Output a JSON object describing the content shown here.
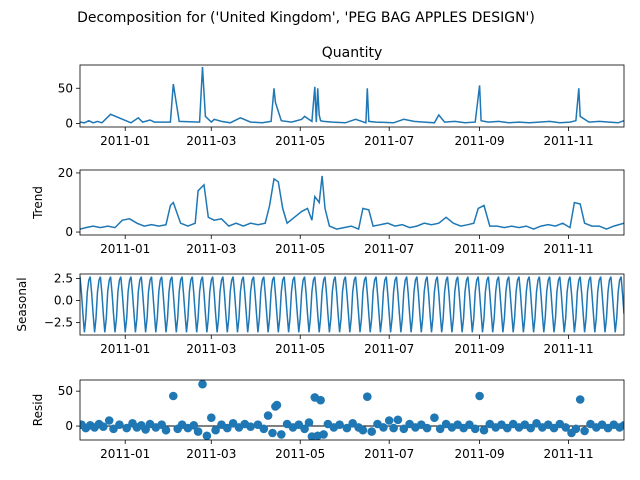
{
  "suptitle": "Decomposition for ('United Kingdom', 'PEG BAG APPLES DESIGN')",
  "colors": {
    "line": "#1f77b4",
    "axis": "#000000",
    "zero": "#000000"
  },
  "chart_data": [
    {
      "type": "line",
      "title": "Quantity",
      "ylabel": "",
      "ylim": [
        -5,
        83
      ],
      "xlim": [
        "2010-12-01",
        "2011-12-09"
      ],
      "yticks": [
        {
          "value": 0,
          "label": "0"
        },
        {
          "value": 50,
          "label": "50"
        }
      ],
      "xticks": [
        {
          "date": "2011-01-01",
          "label": "2011-01"
        },
        {
          "date": "2011-03-01",
          "label": "2011-03"
        },
        {
          "date": "2011-05-01",
          "label": "2011-05"
        },
        {
          "date": "2011-07-01",
          "label": "2011-07"
        },
        {
          "date": "2011-09-01",
          "label": "2011-09"
        },
        {
          "date": "2011-11-01",
          "label": "2011-11"
        }
      ],
      "x_dates": [
        "2010-12-01",
        "2010-12-04",
        "2010-12-07",
        "2010-12-10",
        "2010-12-13",
        "2010-12-16",
        "2010-12-22",
        "2011-01-05",
        "2011-01-10",
        "2011-01-13",
        "2011-01-18",
        "2011-01-21",
        "2011-02-01",
        "2011-02-03",
        "2011-02-07",
        "2011-02-21",
        "2011-02-23",
        "2011-02-25",
        "2011-03-01",
        "2011-03-03",
        "2011-03-08",
        "2011-03-14",
        "2011-03-21",
        "2011-03-28",
        "2011-04-05",
        "2011-04-11",
        "2011-04-13",
        "2011-04-14",
        "2011-04-18",
        "2011-04-25",
        "2011-05-02",
        "2011-05-04",
        "2011-05-09",
        "2011-05-11",
        "2011-05-12",
        "2011-05-13",
        "2011-05-14",
        "2011-05-15",
        "2011-05-17",
        "2011-05-23",
        "2011-06-01",
        "2011-06-08",
        "2011-06-15",
        "2011-06-16",
        "2011-06-17",
        "2011-06-22",
        "2011-07-04",
        "2011-07-11",
        "2011-07-18",
        "2011-07-25",
        "2011-08-01",
        "2011-08-04",
        "2011-08-08",
        "2011-08-15",
        "2011-08-22",
        "2011-08-29",
        "2011-09-01",
        "2011-09-02",
        "2011-09-07",
        "2011-09-14",
        "2011-09-21",
        "2011-09-28",
        "2011-10-05",
        "2011-10-12",
        "2011-10-19",
        "2011-10-26",
        "2011-11-02",
        "2011-11-06",
        "2011-11-08",
        "2011-11-09",
        "2011-11-15",
        "2011-11-22",
        "2011-11-29",
        "2011-12-05",
        "2011-12-09"
      ],
      "values": [
        2,
        1,
        4,
        1,
        3,
        1,
        13,
        1,
        8,
        2,
        5,
        2,
        2,
        56,
        3,
        2,
        80,
        10,
        2,
        6,
        3,
        1,
        8,
        2,
        1,
        3,
        50,
        30,
        4,
        2,
        6,
        10,
        3,
        52,
        2,
        50,
        12,
        4,
        3,
        2,
        1,
        6,
        1,
        50,
        3,
        2,
        1,
        6,
        3,
        2,
        1,
        12,
        2,
        3,
        1,
        2,
        54,
        4,
        2,
        3,
        1,
        2,
        1,
        2,
        3,
        1,
        2,
        4,
        50,
        10,
        2,
        3,
        2,
        1,
        4
      ]
    },
    {
      "type": "line",
      "title": "",
      "ylabel": "Trend",
      "ylim": [
        -1,
        21
      ],
      "xlim": [
        "2010-12-01",
        "2011-12-09"
      ],
      "yticks": [
        {
          "value": 0,
          "label": "0"
        },
        {
          "value": 20,
          "label": "20"
        }
      ],
      "xticks": [
        {
          "date": "2011-01-01",
          "label": "2011-01"
        },
        {
          "date": "2011-03-01",
          "label": "2011-03"
        },
        {
          "date": "2011-05-01",
          "label": "2011-05"
        },
        {
          "date": "2011-07-01",
          "label": "2011-07"
        },
        {
          "date": "2011-09-01",
          "label": "2011-09"
        },
        {
          "date": "2011-11-01",
          "label": "2011-11"
        }
      ],
      "x_dates": [
        "2010-12-01",
        "2010-12-05",
        "2010-12-10",
        "2010-12-15",
        "2010-12-20",
        "2010-12-25",
        "2010-12-30",
        "2011-01-04",
        "2011-01-09",
        "2011-01-14",
        "2011-01-19",
        "2011-01-24",
        "2011-01-29",
        "2011-02-01",
        "2011-02-03",
        "2011-02-08",
        "2011-02-13",
        "2011-02-18",
        "2011-02-20",
        "2011-02-24",
        "2011-02-27",
        "2011-03-03",
        "2011-03-08",
        "2011-03-13",
        "2011-03-18",
        "2011-03-23",
        "2011-03-28",
        "2011-04-02",
        "2011-04-07",
        "2011-04-10",
        "2011-04-13",
        "2011-04-16",
        "2011-04-19",
        "2011-04-22",
        "2011-04-27",
        "2011-05-02",
        "2011-05-06",
        "2011-05-09",
        "2011-05-11",
        "2011-05-14",
        "2011-05-16",
        "2011-05-18",
        "2011-05-21",
        "2011-05-26",
        "2011-05-31",
        "2011-06-05",
        "2011-06-10",
        "2011-06-13",
        "2011-06-17",
        "2011-06-20",
        "2011-06-25",
        "2011-06-30",
        "2011-07-05",
        "2011-07-10",
        "2011-07-15",
        "2011-07-20",
        "2011-07-25",
        "2011-07-30",
        "2011-08-04",
        "2011-08-09",
        "2011-08-14",
        "2011-08-19",
        "2011-08-24",
        "2011-08-28",
        "2011-08-31",
        "2011-09-04",
        "2011-09-08",
        "2011-09-13",
        "2011-09-18",
        "2011-09-23",
        "2011-09-28",
        "2011-10-03",
        "2011-10-08",
        "2011-10-13",
        "2011-10-18",
        "2011-10-23",
        "2011-10-28",
        "2011-11-02",
        "2011-11-05",
        "2011-11-09",
        "2011-11-12",
        "2011-11-17",
        "2011-11-22",
        "2011-11-27",
        "2011-12-02",
        "2011-12-09"
      ],
      "values": [
        1,
        1.5,
        2,
        1.5,
        2,
        1.5,
        4,
        4.5,
        3,
        2,
        2.5,
        2,
        2.5,
        9,
        10,
        3,
        2,
        3,
        14,
        16,
        5,
        4,
        4.5,
        2,
        3,
        2,
        3,
        2.5,
        3,
        9,
        18,
        17,
        8,
        3,
        5,
        7,
        8,
        4,
        12,
        10,
        19,
        8,
        2,
        1,
        1.5,
        2,
        1,
        8,
        7.5,
        2,
        2.5,
        3,
        2,
        2.5,
        1.5,
        2,
        3,
        2.5,
        3,
        5,
        3,
        2,
        2.5,
        3,
        8,
        9,
        2,
        2,
        1.5,
        2,
        1.5,
        2,
        1,
        2,
        2.5,
        2,
        3,
        1.5,
        10,
        9.5,
        3,
        2,
        2,
        1,
        2,
        3
      ]
    },
    {
      "type": "line",
      "title": "",
      "ylabel": "Seasonal",
      "ylim": [
        -3.9,
        3.0
      ],
      "xlim": [
        "2010-12-01",
        "2011-12-09"
      ],
      "period_days": 7,
      "amplitude_max": 2.7,
      "amplitude_min": -3.6,
      "yticks": [
        {
          "value": 2.5,
          "label": "2.5"
        },
        {
          "value": 0,
          "label": "0.0"
        },
        {
          "value": -2.5,
          "label": "−2.5"
        }
      ],
      "xticks": [
        {
          "date": "2011-01-01",
          "label": "2011-01"
        },
        {
          "date": "2011-03-01",
          "label": "2011-03"
        },
        {
          "date": "2011-05-01",
          "label": "2011-05"
        },
        {
          "date": "2011-07-01",
          "label": "2011-07"
        },
        {
          "date": "2011-09-01",
          "label": "2011-09"
        },
        {
          "date": "2011-11-01",
          "label": "2011-11"
        }
      ],
      "weekly_pattern": [
        2.7,
        0.8,
        -1.5,
        -3.6,
        -2.0,
        1.0,
        2.3
      ]
    },
    {
      "type": "scatter",
      "title": "",
      "ylabel": "Resid",
      "ylim": [
        -20,
        66
      ],
      "xlim": [
        "2010-12-01",
        "2011-12-09"
      ],
      "yticks": [
        {
          "value": 0,
          "label": "0"
        },
        {
          "value": 50,
          "label": "50"
        }
      ],
      "xticks": [
        {
          "date": "2011-01-01",
          "label": "2011-01"
        },
        {
          "date": "2011-03-01",
          "label": "2011-03"
        },
        {
          "date": "2011-05-01",
          "label": "2011-05"
        },
        {
          "date": "2011-07-01",
          "label": "2011-07"
        },
        {
          "date": "2011-09-01",
          "label": "2011-09"
        },
        {
          "date": "2011-11-01",
          "label": "2011-11"
        }
      ],
      "points": [
        {
          "x": "2010-12-02",
          "y": 2
        },
        {
          "x": "2010-12-05",
          "y": -3
        },
        {
          "x": "2010-12-08",
          "y": 1
        },
        {
          "x": "2010-12-11",
          "y": -2
        },
        {
          "x": "2010-12-14",
          "y": 3
        },
        {
          "x": "2010-12-17",
          "y": -1
        },
        {
          "x": "2010-12-21",
          "y": 8
        },
        {
          "x": "2010-12-24",
          "y": -4
        },
        {
          "x": "2010-12-28",
          "y": 2
        },
        {
          "x": "2011-01-02",
          "y": -3
        },
        {
          "x": "2011-01-06",
          "y": 4
        },
        {
          "x": "2011-01-09",
          "y": -2
        },
        {
          "x": "2011-01-12",
          "y": 1
        },
        {
          "x": "2011-01-15",
          "y": -5
        },
        {
          "x": "2011-01-18",
          "y": 3
        },
        {
          "x": "2011-01-22",
          "y": -2
        },
        {
          "x": "2011-01-26",
          "y": 2
        },
        {
          "x": "2011-01-29",
          "y": -6
        },
        {
          "x": "2011-02-03",
          "y": 43
        },
        {
          "x": "2011-02-06",
          "y": -4
        },
        {
          "x": "2011-02-09",
          "y": 2
        },
        {
          "x": "2011-02-13",
          "y": -3
        },
        {
          "x": "2011-02-17",
          "y": 1
        },
        {
          "x": "2011-02-20",
          "y": -8
        },
        {
          "x": "2011-02-23",
          "y": 60
        },
        {
          "x": "2011-02-26",
          "y": -14
        },
        {
          "x": "2011-03-01",
          "y": 12
        },
        {
          "x": "2011-03-04",
          "y": -6
        },
        {
          "x": "2011-03-08",
          "y": 2
        },
        {
          "x": "2011-03-12",
          "y": -3
        },
        {
          "x": "2011-03-16",
          "y": 4
        },
        {
          "x": "2011-03-20",
          "y": -2
        },
        {
          "x": "2011-03-24",
          "y": 3
        },
        {
          "x": "2011-03-28",
          "y": -1
        },
        {
          "x": "2011-04-02",
          "y": 2
        },
        {
          "x": "2011-04-06",
          "y": -4
        },
        {
          "x": "2011-04-09",
          "y": 15
        },
        {
          "x": "2011-04-12",
          "y": -10
        },
        {
          "x": "2011-04-14",
          "y": 28
        },
        {
          "x": "2011-04-15",
          "y": 30
        },
        {
          "x": "2011-04-18",
          "y": -12
        },
        {
          "x": "2011-04-22",
          "y": 3
        },
        {
          "x": "2011-04-26",
          "y": -2
        },
        {
          "x": "2011-04-30",
          "y": 2
        },
        {
          "x": "2011-05-04",
          "y": -4
        },
        {
          "x": "2011-05-07",
          "y": 5
        },
        {
          "x": "2011-05-09",
          "y": -15
        },
        {
          "x": "2011-05-11",
          "y": 41
        },
        {
          "x": "2011-05-13",
          "y": -14
        },
        {
          "x": "2011-05-15",
          "y": 37
        },
        {
          "x": "2011-05-17",
          "y": -12
        },
        {
          "x": "2011-05-20",
          "y": 3
        },
        {
          "x": "2011-05-24",
          "y": -2
        },
        {
          "x": "2011-05-28",
          "y": 2
        },
        {
          "x": "2011-06-02",
          "y": -3
        },
        {
          "x": "2011-06-06",
          "y": 4
        },
        {
          "x": "2011-06-10",
          "y": -2
        },
        {
          "x": "2011-06-13",
          "y": -6
        },
        {
          "x": "2011-06-16",
          "y": 42
        },
        {
          "x": "2011-06-19",
          "y": -8
        },
        {
          "x": "2011-06-23",
          "y": 3
        },
        {
          "x": "2011-06-27",
          "y": -2
        },
        {
          "x": "2011-07-01",
          "y": 8
        },
        {
          "x": "2011-07-04",
          "y": -3
        },
        {
          "x": "2011-07-07",
          "y": 9
        },
        {
          "x": "2011-07-11",
          "y": -4
        },
        {
          "x": "2011-07-15",
          "y": 3
        },
        {
          "x": "2011-07-19",
          "y": -2
        },
        {
          "x": "2011-07-23",
          "y": 2
        },
        {
          "x": "2011-07-27",
          "y": -3
        },
        {
          "x": "2011-08-01",
          "y": 12
        },
        {
          "x": "2011-08-05",
          "y": -4
        },
        {
          "x": "2011-08-09",
          "y": 3
        },
        {
          "x": "2011-08-13",
          "y": -2
        },
        {
          "x": "2011-08-17",
          "y": 2
        },
        {
          "x": "2011-08-21",
          "y": -3
        },
        {
          "x": "2011-08-25",
          "y": 2
        },
        {
          "x": "2011-08-29",
          "y": -4
        },
        {
          "x": "2011-09-01",
          "y": 43
        },
        {
          "x": "2011-09-04",
          "y": -6
        },
        {
          "x": "2011-09-08",
          "y": 3
        },
        {
          "x": "2011-09-12",
          "y": -2
        },
        {
          "x": "2011-09-16",
          "y": 2
        },
        {
          "x": "2011-09-20",
          "y": -3
        },
        {
          "x": "2011-09-24",
          "y": 3
        },
        {
          "x": "2011-09-28",
          "y": -2
        },
        {
          "x": "2011-10-02",
          "y": 2
        },
        {
          "x": "2011-10-06",
          "y": -3
        },
        {
          "x": "2011-10-10",
          "y": 4
        },
        {
          "x": "2011-10-14",
          "y": -2
        },
        {
          "x": "2011-10-18",
          "y": 2
        },
        {
          "x": "2011-10-22",
          "y": -3
        },
        {
          "x": "2011-10-26",
          "y": 3
        },
        {
          "x": "2011-10-30",
          "y": -2
        },
        {
          "x": "2011-11-03",
          "y": -10
        },
        {
          "x": "2011-11-06",
          "y": -4
        },
        {
          "x": "2011-11-09",
          "y": 38
        },
        {
          "x": "2011-11-12",
          "y": -7
        },
        {
          "x": "2011-11-16",
          "y": 3
        },
        {
          "x": "2011-11-20",
          "y": -2
        },
        {
          "x": "2011-11-24",
          "y": 2
        },
        {
          "x": "2011-11-28",
          "y": -3
        },
        {
          "x": "2011-12-02",
          "y": 2
        },
        {
          "x": "2011-12-06",
          "y": -2
        },
        {
          "x": "2011-12-09",
          "y": 1
        }
      ]
    }
  ]
}
